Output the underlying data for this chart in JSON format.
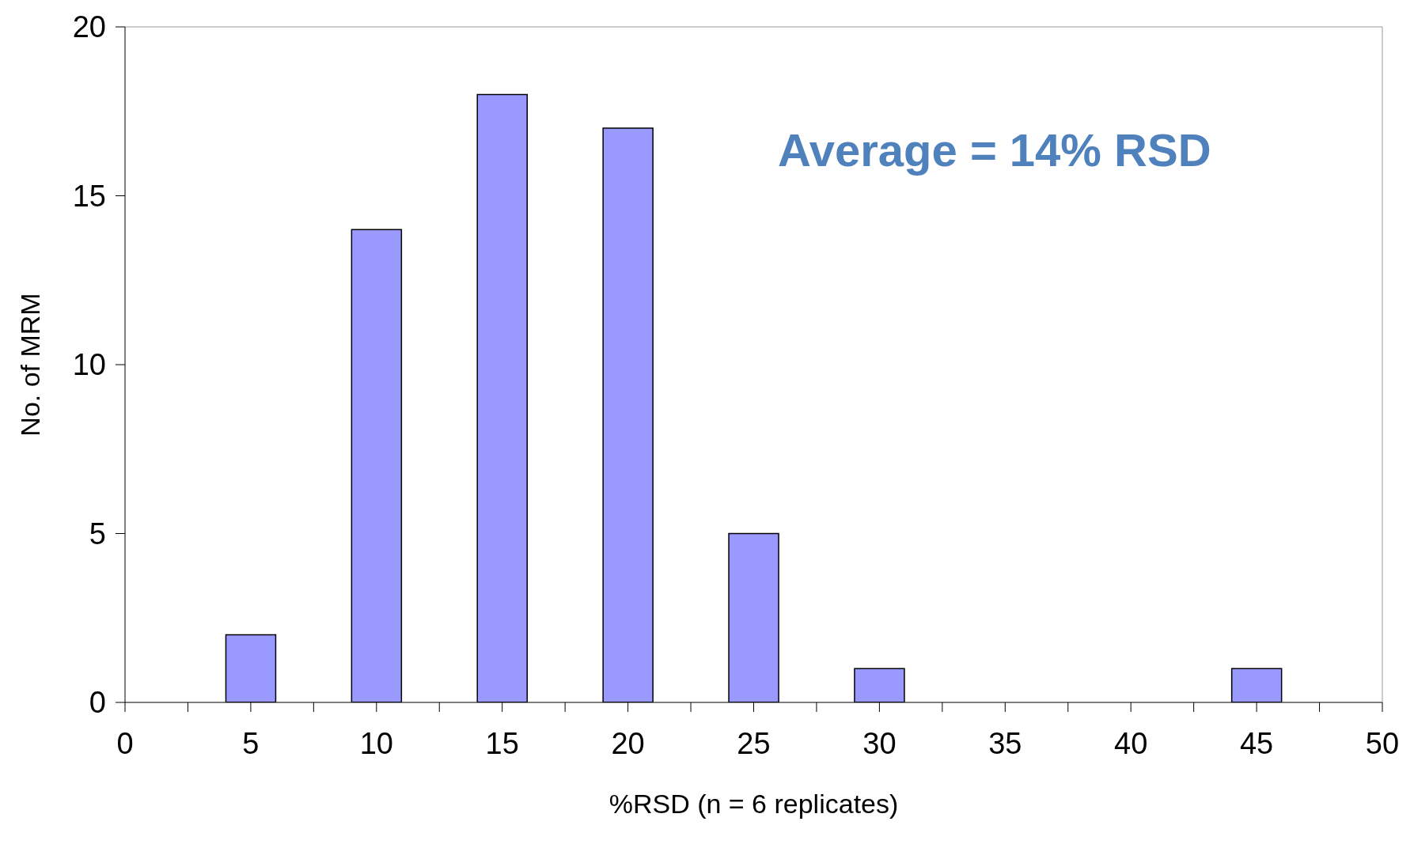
{
  "chart_data": {
    "type": "bar",
    "x": [
      5,
      10,
      15,
      20,
      25,
      30,
      45
    ],
    "values": [
      2,
      14,
      18,
      17,
      5,
      1,
      1
    ],
    "color": "#9999ff",
    "xlabel": "%RSD (n = 6 replicates)",
    "ylabel": "No. of MRM",
    "annotations": [
      "Average = 14% RSD"
    ],
    "xlim": [
      0,
      50
    ],
    "xticks": [
      0,
      {
        "value": 2.5,
        "label": null
      },
      5,
      {
        "value": 7.5,
        "label": null
      },
      10,
      {
        "value": 12.5,
        "label": null
      },
      15,
      {
        "value": 17.5,
        "label": null
      },
      20,
      {
        "value": 22.5,
        "label": null
      },
      25,
      {
        "value": 27.5,
        "label": null
      },
      30,
      {
        "value": 32.5,
        "label": null
      },
      35,
      {
        "value": 37.5,
        "label": null
      },
      40,
      {
        "value": 42.5,
        "label": null
      },
      45,
      {
        "value": 47.5,
        "label": null
      },
      50
    ],
    "ylim": [
      0,
      20
    ],
    "yticks": [
      0,
      5,
      10,
      15,
      20
    ],
    "grid": false,
    "legend": false
  }
}
